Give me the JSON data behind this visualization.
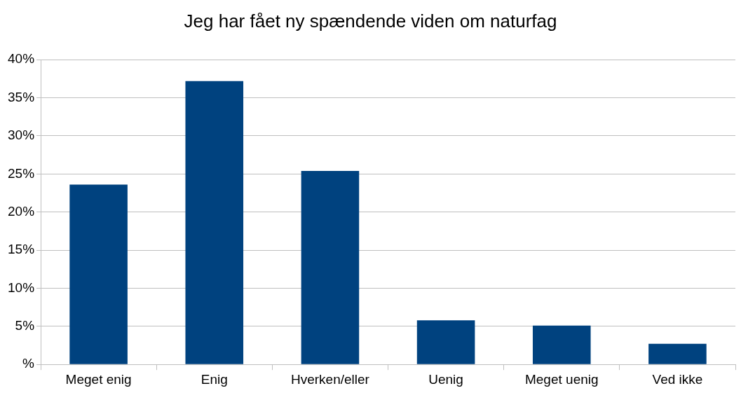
{
  "chart_data": {
    "type": "bar",
    "title": "Jeg har fået ny spændende viden om naturfag",
    "categories": [
      "Meget enig",
      "Enig",
      "Hverken/eller",
      "Uenig",
      "Meget uenig",
      "Ved ikke"
    ],
    "values": [
      23.6,
      37.2,
      25.4,
      5.8,
      5.1,
      2.7
    ],
    "color": "#00427f",
    "ylim": [
      0,
      40
    ],
    "yticks": [
      {
        "value": 0,
        "label": "%"
      },
      {
        "value": 5,
        "label": "5%"
      },
      {
        "value": 10,
        "label": "10%"
      },
      {
        "value": 15,
        "label": "15%"
      },
      {
        "value": 20,
        "label": "20%"
      },
      {
        "value": 25,
        "label": "25%"
      },
      {
        "value": 30,
        "label": "30%"
      },
      {
        "value": 35,
        "label": "35%"
      },
      {
        "value": 40,
        "label": "40%"
      }
    ],
    "grid": "y",
    "legend": false
  }
}
